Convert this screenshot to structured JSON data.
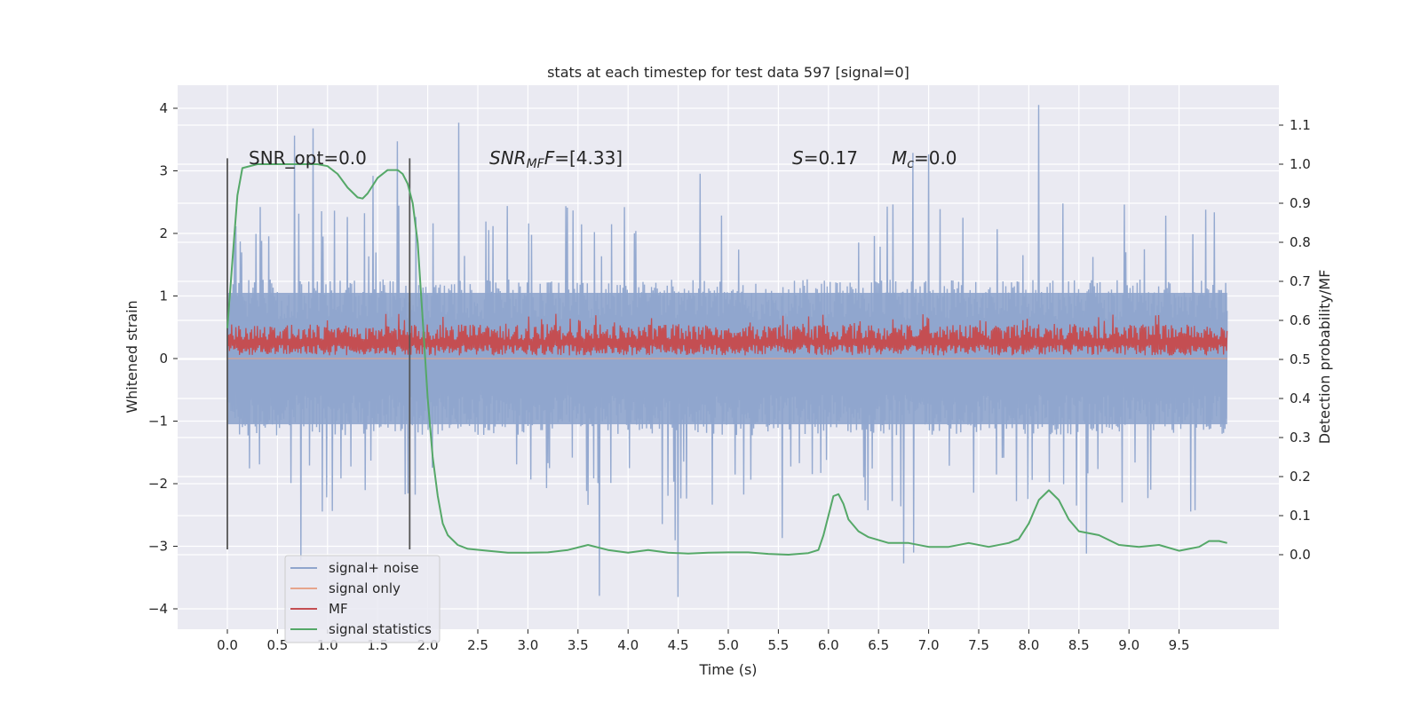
{
  "chart_data": {
    "type": "line",
    "title": "stats at each timestep for test data 597 [signal=0]",
    "xlabel": "Time (s)",
    "ylabel": "Whitened strain",
    "y2label": "Detection probability/MF",
    "xlim": [
      -0.5,
      10.5
    ],
    "ylim": [
      -4.3,
      4.4
    ],
    "y2lim": [
      -0.2,
      1.2
    ],
    "x_ticks": [
      "0.0",
      "0.5",
      "1.0",
      "1.5",
      "2.0",
      "2.5",
      "3.0",
      "3.5",
      "4.0",
      "4.5",
      "5.0",
      "5.5",
      "6.0",
      "6.5",
      "7.0",
      "7.5",
      "8.0",
      "8.5",
      "9.0",
      "9.5"
    ],
    "y_ticks": [
      "4",
      "3",
      "2",
      "1",
      "0",
      "−1",
      "−2",
      "−3",
      "−4"
    ],
    "y2_ticks": [
      "0.0",
      "0.1",
      "0.2",
      "0.3",
      "0.4",
      "0.5",
      "0.6",
      "0.7",
      "0.8",
      "0.9",
      "1.0",
      "1.1"
    ],
    "grid": true,
    "legend_position": "lower-left",
    "annotations": {
      "snr_opt": "SNR_opt=0.0",
      "snr_mf_label": "SNR",
      "snr_mf_sub": "MF",
      "snr_mf_tail": "=[4.33]",
      "s_label": "S",
      "s_value": "=0.17",
      "mc_label": "M",
      "mc_sub": "c",
      "mc_value": "=0.0"
    },
    "vlines_x": [
      0.0,
      1.82
    ],
    "series": [
      {
        "name": "signal+ noise",
        "color": "#8fa5cd",
        "axis": "left",
        "style": "dense noise, approx ±1.2 typical, peaks to ±4",
        "envelope": {
          "typical_pos": 1.25,
          "typical_neg": -1.2,
          "max": 4.05,
          "min": -3.9
        }
      },
      {
        "name": "signal only",
        "color": "#e6a58c",
        "axis": "left",
        "values": "flat at 0"
      },
      {
        "name": "MF",
        "color": "#c44e52",
        "axis": "left",
        "style": "noise band approx 0.05 to 0.7",
        "envelope": {
          "low": 0.05,
          "high": 0.72
        }
      },
      {
        "name": "signal statistics",
        "color": "#55a868",
        "axis": "right",
        "x": [
          0.0,
          0.05,
          0.1,
          0.15,
          0.3,
          0.5,
          0.7,
          0.9,
          1.0,
          1.1,
          1.2,
          1.3,
          1.35,
          1.4,
          1.5,
          1.6,
          1.7,
          1.75,
          1.8,
          1.85,
          1.9,
          1.95,
          2.0,
          2.05,
          2.1,
          2.15,
          2.2,
          2.3,
          2.4,
          2.6,
          2.8,
          3.0,
          3.2,
          3.4,
          3.6,
          3.8,
          4.0,
          4.2,
          4.4,
          4.6,
          4.8,
          5.0,
          5.2,
          5.4,
          5.6,
          5.8,
          5.9,
          5.95,
          6.0,
          6.05,
          6.1,
          6.15,
          6.2,
          6.3,
          6.4,
          6.6,
          6.8,
          7.0,
          7.2,
          7.4,
          7.6,
          7.8,
          7.9,
          8.0,
          8.1,
          8.2,
          8.3,
          8.4,
          8.5,
          8.7,
          8.9,
          9.1,
          9.3,
          9.5,
          9.6,
          9.7,
          9.8,
          9.9,
          9.98
        ],
        "y": [
          0.58,
          0.75,
          0.92,
          0.99,
          1.0,
          1.0,
          1.0,
          1.0,
          0.995,
          0.975,
          0.94,
          0.915,
          0.912,
          0.925,
          0.965,
          0.985,
          0.985,
          0.975,
          0.95,
          0.9,
          0.8,
          0.6,
          0.4,
          0.25,
          0.15,
          0.08,
          0.05,
          0.025,
          0.015,
          0.01,
          0.005,
          0.005,
          0.006,
          0.012,
          0.025,
          0.012,
          0.005,
          0.012,
          0.005,
          0.003,
          0.005,
          0.006,
          0.006,
          0.002,
          0.0,
          0.004,
          0.012,
          0.05,
          0.1,
          0.15,
          0.155,
          0.13,
          0.09,
          0.06,
          0.045,
          0.03,
          0.03,
          0.02,
          0.02,
          0.03,
          0.02,
          0.03,
          0.04,
          0.08,
          0.14,
          0.165,
          0.14,
          0.09,
          0.06,
          0.05,
          0.025,
          0.02,
          0.025,
          0.01,
          0.015,
          0.02,
          0.035,
          0.035,
          0.03
        ]
      }
    ]
  }
}
